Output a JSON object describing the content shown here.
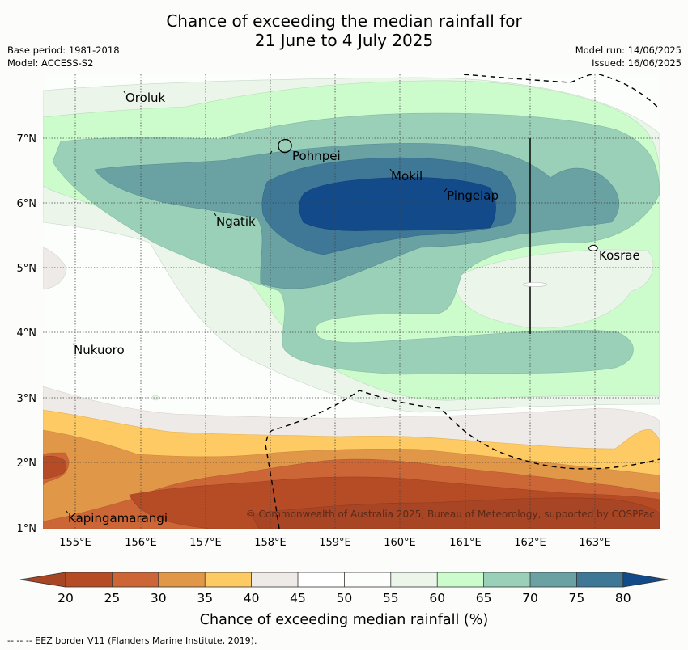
{
  "title_line1": "Chance of exceeding the median rainfall for",
  "title_line2": "21 June to 4 July 2025",
  "meta": {
    "base_period": "Base period: 1981-2018",
    "model": "Model: ACCESS-S2",
    "model_run": "Model run: 14/06/2025",
    "issued": "Issued: 16/06/2025"
  },
  "places": [
    {
      "name": "Oroluk"
    },
    {
      "name": "Pohnpei"
    },
    {
      "name": "Mokil"
    },
    {
      "name": "Pingelap"
    },
    {
      "name": "Ngatik"
    },
    {
      "name": "Kosrae"
    },
    {
      "name": "Nukuoro"
    },
    {
      "name": "Kapingamarangi"
    }
  ],
  "lon_labels": [
    "155°E",
    "156°E",
    "157°E",
    "158°E",
    "159°E",
    "160°E",
    "161°E",
    "162°E",
    "163°E"
  ],
  "lat_labels": [
    "7°N",
    "6°N",
    "5°N",
    "4°N",
    "3°N",
    "2°N",
    "1°N"
  ],
  "copyright": "© Commonwealth of Australia 2025, Bureau of Meteorology, supported by COSPPac",
  "colorbar": {
    "label": "Chance of exceeding median rainfall (%)",
    "ticks": [
      "20",
      "25",
      "30",
      "35",
      "40",
      "45",
      "50",
      "55",
      "60",
      "65",
      "70",
      "75",
      "80"
    ],
    "colors": {
      "lt20": "#a84524",
      "c20_25": "#b54c26",
      "c25_30": "#cd6636",
      "c30_35": "#e09748",
      "c35_40": "#fdca63",
      "c40_45": "#eeeae7",
      "c45_50": "#ffffff",
      "c50_55": "#fcfefc",
      "c55_60": "#ebf5ea",
      "c60_65": "#ccfccc",
      "c65_70": "#9acfb8",
      "c70_75": "#6aa2a4",
      "c75_80": "#3e7896",
      "gt80": "#134a8a"
    }
  },
  "legend_note": "--  --  -- EEZ border V11 (Flanders Marine Institute, 2019)."
}
